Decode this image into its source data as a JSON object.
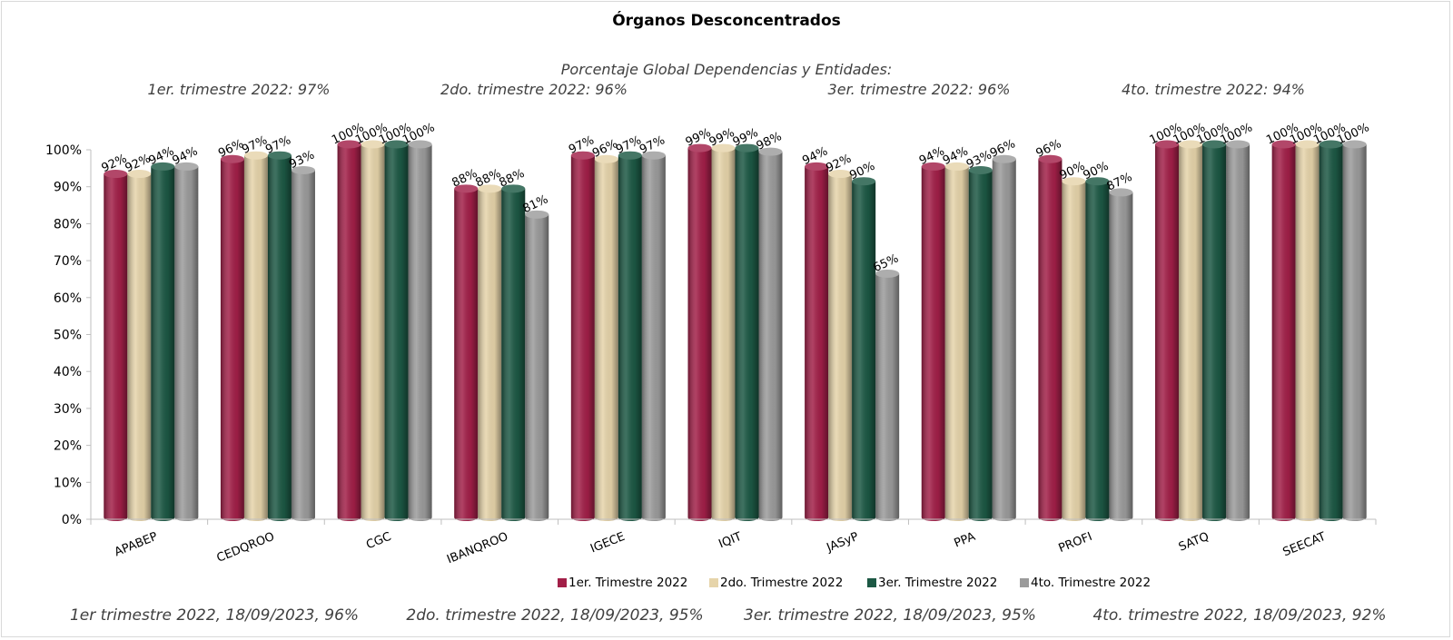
{
  "chart_data": {
    "type": "bar",
    "title": "Órganos Desconcentrados",
    "subtitle": "Porcentaje Global  Dependencias y Entidades:",
    "quarter_summaries": [
      "1er. trimestre 2022: 97%",
      "2do. trimestre 2022: 96%",
      "3er. trimestre 2022: 96%",
      "4to. trimestre 2022: 94%"
    ],
    "categories": [
      "APABEP",
      "CEDQROO",
      "CGC",
      "IBANQROO",
      "IGECE",
      "IQIT",
      "JASyP",
      "PPA",
      "PROFI",
      "SATQ",
      "SEECAT"
    ],
    "series": [
      {
        "name": "1er. Trimestre 2022",
        "color": "#a21f48",
        "values": [
          92,
          96,
          100,
          88,
          97,
          99,
          94,
          94,
          96,
          100,
          100
        ]
      },
      {
        "name": "2do. Trimestre 2022",
        "color": "#e6d4aa",
        "values": [
          92,
          97,
          100,
          88,
          96,
          99,
          92,
          94,
          90,
          100,
          100
        ]
      },
      {
        "name": "3er. Trimestre 2022",
        "color": "#1c5844",
        "values": [
          94,
          97,
          100,
          88,
          97,
          99,
          90,
          93,
          90,
          100,
          100
        ]
      },
      {
        "name": "4to. Trimestre 2022",
        "color": "#9b9b9b",
        "values": [
          94,
          93,
          100,
          81,
          97,
          98,
          65,
          96,
          87,
          100,
          100
        ]
      }
    ],
    "y_ticks": [
      "0%",
      "10%",
      "20%",
      "30%",
      "40%",
      "50%",
      "60%",
      "70%",
      "80%",
      "90%",
      "100%"
    ],
    "ylim": [
      0,
      100
    ],
    "legend_position": "bottom",
    "grid": false,
    "footer_notes": [
      "1er trimestre  2022,  18/09/2023, 96%",
      "2do. trimestre 2022, 18/09/2023, 95%",
      "3er. trimestre 2022, 18/09/2023, 95%",
      "4to. trimestre 2022, 18/09/2023, 92%"
    ]
  }
}
